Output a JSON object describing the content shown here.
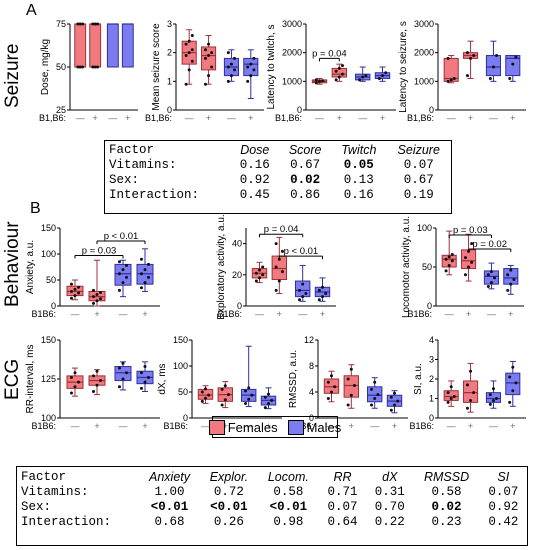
{
  "panels": {
    "a": "A",
    "b": "B"
  },
  "sections": {
    "seizure": "Seizure",
    "behaviour": "Behaviour",
    "ecg": "ECG"
  },
  "colors": {
    "female": "#f07a80",
    "male": "#7b7cf0",
    "female_dark": "#a03038",
    "male_dark": "#2e2fa0"
  },
  "legend": {
    "female": "Females",
    "male": "Males"
  },
  "group_label_row1": "B1,B6:",
  "group_label_rest": "B1B6:",
  "tick_minus": "—",
  "tick_plus": "+",
  "table_top": {
    "headers": [
      "Factor",
      "Dose",
      "Score",
      "Twitch",
      "Seizure"
    ],
    "rows": [
      {
        "factor": "Vitamins:",
        "values": [
          "0.16",
          "0.67",
          "0.05",
          "0.07"
        ],
        "bold": [
          false,
          false,
          true,
          false
        ]
      },
      {
        "factor": "Sex:",
        "values": [
          "0.92",
          "0.02",
          "0.13",
          "0.67"
        ],
        "bold": [
          false,
          true,
          false,
          false
        ]
      },
      {
        "factor": "Interaction:",
        "values": [
          "0.45",
          "0.86",
          "0.16",
          "0.19"
        ],
        "bold": [
          false,
          false,
          false,
          false
        ]
      }
    ]
  },
  "table_bottom": {
    "headers": [
      "Factor",
      "Anxiety",
      "Explor.",
      "Locom.",
      "RR",
      "dX",
      "RMSSD",
      "SI"
    ],
    "rows": [
      {
        "factor": "Vitamins:",
        "values": [
          "1.00",
          "0.72",
          "0.58",
          "0.71",
          "0.31",
          "0.58",
          "0.07"
        ],
        "bold": [
          false,
          false,
          false,
          false,
          false,
          false,
          false
        ]
      },
      {
        "factor": "Sex:",
        "values": [
          "<0.01",
          "<0.01",
          "<0.01",
          "0.07",
          "0.70",
          "0.02",
          "0.92"
        ],
        "bold": [
          true,
          true,
          true,
          false,
          false,
          true,
          false
        ]
      },
      {
        "factor": "Interaction:",
        "values": [
          "0.68",
          "0.26",
          "0.98",
          "0.64",
          "0.22",
          "0.23",
          "0.42"
        ],
        "bold": [
          false,
          false,
          false,
          false,
          false,
          false,
          false
        ]
      }
    ]
  },
  "chart_data": [
    {
      "type": "box",
      "id": "dose",
      "ylabel": "Dose, mg/kg",
      "ylim": [
        25,
        75
      ],
      "ticks": [
        25,
        50,
        75
      ],
      "groups": [
        {
          "sex": "female",
          "b1b6": "—",
          "min": 50,
          "q1": 50,
          "median": 75,
          "q3": 75,
          "max": 75,
          "points": [
            50,
            50,
            50,
            75,
            75,
            75
          ]
        },
        {
          "sex": "female",
          "b1b6": "+",
          "min": 50,
          "q1": 50,
          "median": 75,
          "q3": 75,
          "max": 75,
          "points": [
            50,
            50,
            50,
            75,
            75,
            75
          ]
        },
        {
          "sex": "male",
          "b1b6": "—",
          "min": 50,
          "q1": 50,
          "median": 75,
          "q3": 75,
          "max": 75,
          "points": []
        },
        {
          "sex": "male",
          "b1b6": "+",
          "min": 50,
          "q1": 50,
          "median": 75,
          "q3": 75,
          "max": 75,
          "points": []
        }
      ],
      "annotations": []
    },
    {
      "type": "box",
      "id": "score",
      "ylabel": "Mean seizure score",
      "ylim": [
        0,
        3
      ],
      "ticks": [
        0,
        1,
        2,
        3
      ],
      "groups": [
        {
          "sex": "female",
          "b1b6": "—",
          "min": 0.9,
          "q1": 1.6,
          "median": 2.0,
          "q3": 2.4,
          "max": 2.8,
          "points": [
            0.9,
            1.4,
            1.7,
            1.9,
            2.0,
            2.1,
            2.3,
            2.4,
            2.6
          ]
        },
        {
          "sex": "female",
          "b1b6": "+",
          "min": 0.9,
          "q1": 1.4,
          "median": 1.9,
          "q3": 2.2,
          "max": 2.6,
          "points": [
            0.9,
            1.2,
            1.5,
            1.8,
            1.9,
            2.0,
            2.1,
            2.3
          ]
        },
        {
          "sex": "male",
          "b1b6": "—",
          "min": 1.0,
          "q1": 1.2,
          "median": 1.5,
          "q3": 1.8,
          "max": 2.1,
          "points": [
            1.0,
            1.2,
            1.4,
            1.5,
            1.6,
            1.8,
            2.0
          ]
        },
        {
          "sex": "male",
          "b1b6": "+",
          "min": 0.4,
          "q1": 1.2,
          "median": 1.6,
          "q3": 1.8,
          "max": 2.1,
          "points": [
            1.0,
            1.2,
            1.4,
            1.5,
            1.6,
            1.8
          ]
        }
      ],
      "annotations": []
    },
    {
      "type": "box",
      "id": "twitch",
      "ylabel": "Latency to twitch, s",
      "ylim": [
        0,
        3000
      ],
      "ticks": [
        0,
        1000,
        2000,
        3000
      ],
      "groups": [
        {
          "sex": "female",
          "b1b6": "—",
          "min": 900,
          "q1": 950,
          "median": 1000,
          "q3": 1050,
          "max": 1100,
          "points": [
            950,
            1000,
            1020,
            1050
          ]
        },
        {
          "sex": "female",
          "b1b6": "+",
          "min": 1000,
          "q1": 1150,
          "median": 1250,
          "q3": 1450,
          "max": 1600,
          "points": [
            1050,
            1150,
            1250,
            1350,
            1450,
            1550
          ]
        },
        {
          "sex": "male",
          "b1b6": "—",
          "min": 1000,
          "q1": 1050,
          "median": 1150,
          "q3": 1250,
          "max": 1500,
          "points": [
            1050,
            1150,
            1200
          ]
        },
        {
          "sex": "male",
          "b1b6": "+",
          "min": 1000,
          "q1": 1100,
          "median": 1200,
          "q3": 1300,
          "max": 1500,
          "points": [
            1100,
            1200,
            1300
          ]
        }
      ],
      "annotations": [
        {
          "text": "p = 0.04",
          "from": 0,
          "to": 1,
          "y": 1800
        }
      ]
    },
    {
      "type": "box",
      "id": "seizure",
      "ylabel": "Latency to seizure, s",
      "ylim": [
        0,
        3000
      ],
      "ticks": [
        0,
        1000,
        2000,
        3000
      ],
      "groups": [
        {
          "sex": "female",
          "b1b6": "—",
          "min": 950,
          "q1": 1000,
          "median": 1100,
          "q3": 1800,
          "max": 1900,
          "points": [
            1000,
            1050,
            1100,
            1800
          ]
        },
        {
          "sex": "female",
          "b1b6": "+",
          "min": 1100,
          "q1": 1800,
          "median": 1900,
          "q3": 2000,
          "max": 2400,
          "points": [
            1200,
            1800,
            1900,
            2000
          ]
        },
        {
          "sex": "male",
          "b1b6": "—",
          "min": 1000,
          "q1": 1200,
          "median": 1500,
          "q3": 1900,
          "max": 2400,
          "points": [
            1100,
            1500,
            1900
          ]
        },
        {
          "sex": "male",
          "b1b6": "+",
          "min": 1000,
          "q1": 1200,
          "median": 1800,
          "q3": 1900,
          "max": 1900,
          "points": [
            1100,
            1600,
            1850
          ]
        }
      ],
      "annotations": []
    },
    {
      "type": "box",
      "id": "anxiety",
      "ylabel": "Anxiety, a.u.",
      "ylim": [
        0,
        150
      ],
      "ticks": [
        0,
        50,
        100,
        150
      ],
      "groups": [
        {
          "sex": "female",
          "b1b6": "—",
          "min": 12,
          "q1": 20,
          "median": 28,
          "q3": 38,
          "max": 50,
          "points": [
            15,
            20,
            25,
            28,
            32,
            36,
            42
          ]
        },
        {
          "sex": "female",
          "b1b6": "+",
          "min": 0,
          "q1": 10,
          "median": 18,
          "q3": 28,
          "max": 88,
          "points": [
            5,
            10,
            14,
            18,
            22,
            26,
            30
          ]
        },
        {
          "sex": "male",
          "b1b6": "—",
          "min": 18,
          "q1": 40,
          "median": 62,
          "q3": 80,
          "max": 88,
          "points": [
            30,
            45,
            55,
            62,
            70,
            78,
            85
          ]
        },
        {
          "sex": "male",
          "b1b6": "+",
          "min": 28,
          "q1": 42,
          "median": 62,
          "q3": 80,
          "max": 110,
          "points": [
            35,
            45,
            55,
            62,
            70,
            80,
            90
          ]
        }
      ],
      "annotations": [
        {
          "text": "p = 0.03",
          "from": 0,
          "to": 2,
          "y": 97
        },
        {
          "text": "p < 0.01",
          "from": 1,
          "to": 3,
          "y": 125
        }
      ]
    },
    {
      "type": "box",
      "id": "exploratory",
      "ylabel": "Exploratory activity, a.u.",
      "ylim": [
        0,
        50
      ],
      "ticks": [
        0,
        20,
        40
      ],
      "groups": [
        {
          "sex": "female",
          "b1b6": "—",
          "min": 15,
          "q1": 18,
          "median": 21,
          "q3": 24,
          "max": 28,
          "points": [
            16,
            18,
            20,
            21,
            23,
            25
          ]
        },
        {
          "sex": "female",
          "b1b6": "+",
          "min": 8,
          "q1": 17,
          "median": 24,
          "q3": 32,
          "max": 44,
          "points": [
            10,
            16,
            22,
            25,
            30,
            35,
            40
          ]
        },
        {
          "sex": "male",
          "b1b6": "—",
          "min": 3,
          "q1": 6,
          "median": 10,
          "q3": 16,
          "max": 26,
          "points": [
            4,
            6,
            8,
            10,
            14
          ]
        },
        {
          "sex": "male",
          "b1b6": "+",
          "min": 3,
          "q1": 6,
          "median": 9,
          "q3": 12,
          "max": 18,
          "points": [
            4,
            6,
            8,
            10,
            12
          ]
        }
      ],
      "annotations": [
        {
          "text": "p = 0.04",
          "from": 0,
          "to": 2,
          "y": 46
        },
        {
          "text": "p < 0.01",
          "from": 1,
          "to": 3,
          "y": 32
        }
      ]
    },
    {
      "type": "box",
      "id": "locomotor",
      "ylabel": "Locomotor activity, a.u.",
      "ylim": [
        0,
        100
      ],
      "ticks": [
        0,
        50,
        100
      ],
      "groups": [
        {
          "sex": "female",
          "b1b6": "—",
          "min": 40,
          "q1": 50,
          "median": 60,
          "q3": 65,
          "max": 96,
          "points": [
            45,
            52,
            58,
            60,
            63,
            66
          ]
        },
        {
          "sex": "female",
          "b1b6": "+",
          "min": 32,
          "q1": 48,
          "median": 58,
          "q3": 72,
          "max": 92,
          "points": [
            40,
            50,
            56,
            62,
            70,
            80
          ]
        },
        {
          "sex": "male",
          "b1b6": "—",
          "min": 22,
          "q1": 28,
          "median": 38,
          "q3": 45,
          "max": 55,
          "points": [
            25,
            30,
            36,
            40,
            44
          ]
        },
        {
          "sex": "male",
          "b1b6": "+",
          "min": 15,
          "q1": 28,
          "median": 36,
          "q3": 48,
          "max": 52,
          "points": [
            20,
            28,
            34,
            40,
            46
          ]
        }
      ],
      "annotations": [
        {
          "text": "p = 0.03",
          "from": 0,
          "to": 2,
          "y": 91
        },
        {
          "text": "p = 0.02",
          "from": 1,
          "to": 3,
          "y": 73
        }
      ]
    },
    {
      "type": "box",
      "id": "rr",
      "ylabel": "RR-interval, ms",
      "ylim": [
        100,
        150
      ],
      "ticks": [
        100,
        125,
        150
      ],
      "groups": [
        {
          "sex": "female",
          "b1b6": "—",
          "min": 114,
          "q1": 119,
          "median": 123,
          "q3": 127,
          "max": 132,
          "points": [
            116,
            120,
            123,
            126,
            129
          ]
        },
        {
          "sex": "female",
          "b1b6": "+",
          "min": 115,
          "q1": 121,
          "median": 124,
          "q3": 127,
          "max": 131,
          "points": [
            117,
            121,
            124,
            127,
            130
          ]
        },
        {
          "sex": "male",
          "b1b6": "—",
          "min": 118,
          "q1": 124,
          "median": 129,
          "q3": 133,
          "max": 136,
          "points": [
            120,
            125,
            129,
            132,
            135
          ]
        },
        {
          "sex": "male",
          "b1b6": "+",
          "min": 117,
          "q1": 122,
          "median": 126,
          "q3": 130,
          "max": 136,
          "points": [
            119,
            123,
            126,
            129,
            133
          ]
        }
      ],
      "annotations": []
    },
    {
      "type": "box",
      "id": "dx",
      "ylabel": "dX, ms",
      "ylim": [
        0,
        150
      ],
      "ticks": [
        0,
        50,
        100,
        150
      ],
      "groups": [
        {
          "sex": "female",
          "b1b6": "—",
          "min": 28,
          "q1": 36,
          "median": 44,
          "q3": 55,
          "max": 62,
          "points": [
            32,
            38,
            44,
            50,
            56
          ]
        },
        {
          "sex": "female",
          "b1b6": "+",
          "min": 20,
          "q1": 32,
          "median": 45,
          "q3": 58,
          "max": 70,
          "points": [
            25,
            35,
            45,
            55,
            62
          ]
        },
        {
          "sex": "male",
          "b1b6": "—",
          "min": 22,
          "q1": 32,
          "median": 44,
          "q3": 55,
          "max": 138,
          "points": [
            28,
            36,
            44,
            52,
            58
          ]
        },
        {
          "sex": "male",
          "b1b6": "+",
          "min": 18,
          "q1": 25,
          "median": 34,
          "q3": 42,
          "max": 58,
          "points": [
            20,
            28,
            34,
            40,
            46
          ]
        }
      ],
      "annotations": []
    },
    {
      "type": "box",
      "id": "rmssd",
      "ylabel": "RMSSD, a.u.",
      "ylim": [
        0,
        12
      ],
      "ticks": [
        0,
        4,
        8,
        12
      ],
      "groups": [
        {
          "sex": "female",
          "b1b6": "—",
          "min": 2.5,
          "q1": 3.8,
          "median": 4.8,
          "q3": 6.0,
          "max": 7.2,
          "points": [
            3,
            4,
            4.8,
            5.5,
            6.5
          ]
        },
        {
          "sex": "female",
          "b1b6": "+",
          "min": 1.5,
          "q1": 3.2,
          "median": 5.0,
          "q3": 6.5,
          "max": 8.2,
          "points": [
            2,
            3.5,
            5,
            6,
            7.5
          ]
        },
        {
          "sex": "male",
          "b1b6": "—",
          "min": 1.5,
          "q1": 2.5,
          "median": 3.5,
          "q3": 4.8,
          "max": 6.2,
          "points": [
            2,
            3,
            3.6,
            4.4,
            5.5
          ]
        },
        {
          "sex": "male",
          "b1b6": "+",
          "min": 0.8,
          "q1": 1.8,
          "median": 2.6,
          "q3": 3.5,
          "max": 4.2,
          "points": [
            1.2,
            2,
            2.6,
            3.2,
            3.8
          ]
        }
      ],
      "annotations": []
    },
    {
      "type": "box",
      "id": "si",
      "ylabel": "SI, a.u.",
      "ylim": [
        0,
        4
      ],
      "ticks": [
        0,
        1,
        2,
        3,
        4
      ],
      "groups": [
        {
          "sex": "female",
          "b1b6": "—",
          "min": 0.6,
          "q1": 0.9,
          "median": 1.1,
          "q3": 1.4,
          "max": 1.9,
          "points": [
            0.8,
            1.0,
            1.1,
            1.3,
            1.6
          ]
        },
        {
          "sex": "female",
          "b1b6": "+",
          "min": 0.3,
          "q1": 0.8,
          "median": 1.3,
          "q3": 1.9,
          "max": 2.8,
          "points": [
            0.5,
            0.9,
            1.3,
            1.7,
            2.4
          ]
        },
        {
          "sex": "male",
          "b1b6": "—",
          "min": 0.5,
          "q1": 0.8,
          "median": 1.0,
          "q3": 1.3,
          "max": 1.9,
          "points": [
            0.7,
            0.9,
            1.0,
            1.2,
            1.5
          ]
        },
        {
          "sex": "male",
          "b1b6": "+",
          "min": 0.6,
          "q1": 1.2,
          "median": 1.8,
          "q3": 2.3,
          "max": 2.9,
          "points": [
            0.8,
            1.4,
            1.8,
            2.1,
            2.6
          ]
        }
      ],
      "annotations": []
    }
  ]
}
